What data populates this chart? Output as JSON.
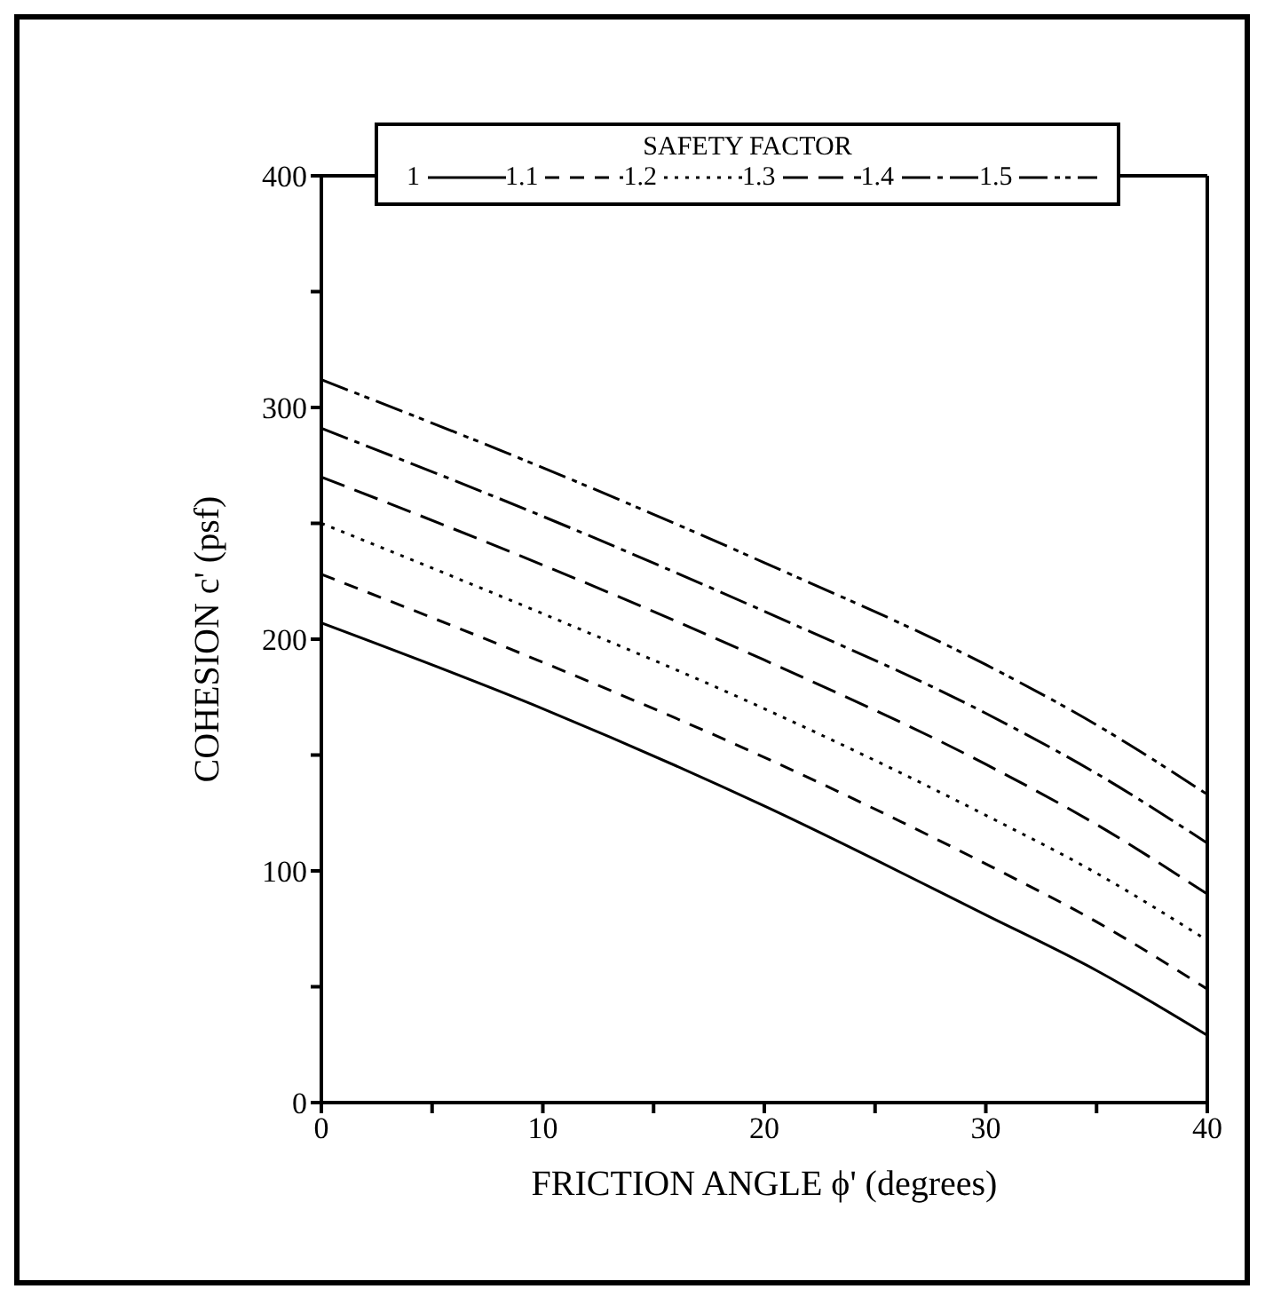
{
  "chart_data": {
    "type": "line",
    "xlabel": "FRICTION ANGLE ϕ' (degrees)",
    "ylabel": "COHESION c' (psf)",
    "legend_title": "SAFETY FACTOR",
    "legend": "top",
    "grid": false,
    "marker": "none",
    "x": [
      0,
      10,
      20,
      30,
      35,
      40
    ],
    "xlim": [
      0,
      40
    ],
    "xticks": [
      0,
      {
        "value": 5,
        "label": null
      },
      10,
      {
        "value": 15,
        "label": null
      },
      20,
      {
        "value": 25,
        "label": null
      },
      30,
      {
        "value": 35,
        "label": null
      },
      40
    ],
    "ylim": [
      0,
      400
    ],
    "yticks": [
      0,
      {
        "value": 50,
        "label": null
      },
      100,
      {
        "value": 150,
        "label": null
      },
      200,
      {
        "value": 250,
        "label": null
      },
      300,
      {
        "value": 350,
        "label": null
      },
      400
    ],
    "series": [
      {
        "name": "1",
        "color": "#000000",
        "line_style": "solid",
        "values": [
          207,
          170,
          128,
          81,
          57,
          29
        ]
      },
      {
        "name": "1.1",
        "color": "#000000",
        "line_style": "dashed",
        "values": [
          228,
          190,
          149,
          103,
          78,
          49
        ]
      },
      {
        "name": "1.2",
        "color": "#000000",
        "line_style": "dotted",
        "values": [
          250,
          211,
          170,
          124,
          99,
          70
        ]
      },
      {
        "name": "1.3",
        "color": "#000000",
        "line_style": "dashed",
        "values": [
          270,
          232,
          191,
          146,
          120,
          90
        ]
      },
      {
        "name": "1.4",
        "color": "#000000",
        "line_style": "dashed",
        "values": [
          291,
          253,
          212,
          168,
          142,
          112
        ]
      },
      {
        "name": "1.5",
        "color": "#000000",
        "line_style": "dashed",
        "values": [
          312,
          274,
          233,
          189,
          163,
          133
        ]
      }
    ]
  }
}
